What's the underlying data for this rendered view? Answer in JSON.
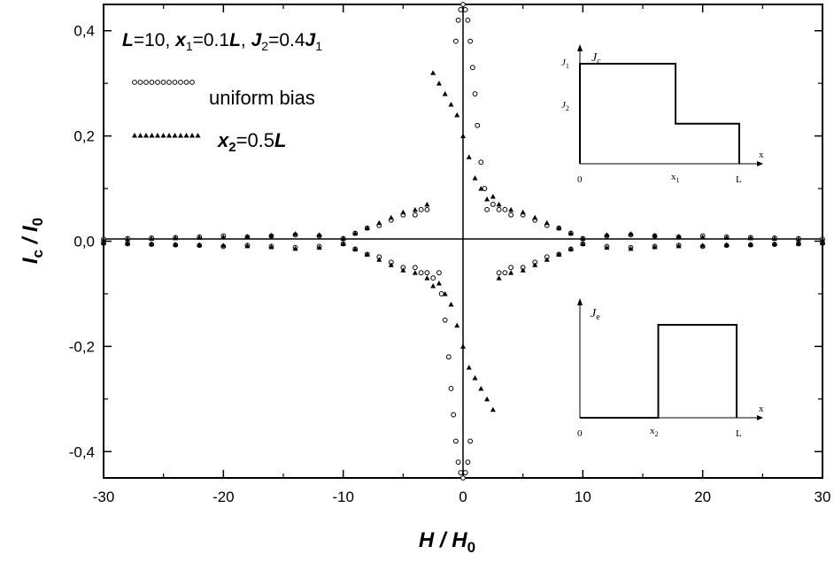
{
  "chart_data": {
    "type": "scatter",
    "xlabel": "H / H0",
    "ylabel": "Ic / I0",
    "xlim": [
      -30,
      30
    ],
    "ylim": [
      -0.45,
      0.45
    ],
    "xticks": [
      -30,
      -20,
      -10,
      0,
      10,
      20,
      30
    ],
    "yticks": [
      -0.4,
      -0.2,
      0.0,
      0.2,
      0.4
    ],
    "ytick_labels": [
      "-0,4",
      "-0,2",
      "0,0",
      "0,2",
      "0,4"
    ],
    "xtick_labels": [
      "-30",
      "-20",
      "-10",
      "0",
      "10",
      "20",
      "30"
    ],
    "annotation": {
      "L_sym": "L",
      "L_val": "=10, ",
      "x1_sym": "x",
      "x1_sub": "1",
      "x1_val": "=0.1",
      "x1_L": "L",
      "sep": ", ",
      "J2_sym": "J",
      "J2_sub": "2",
      "J2_val": "=0.4",
      "J1_sym": "J",
      "J1_sub": "1"
    },
    "legend": {
      "placement": "top-left",
      "entries": [
        {
          "marker": "circle",
          "label": "uniform bias"
        },
        {
          "marker": "triangle",
          "label_sym": "x",
          "label_sub": "2",
          "label_val": "=0.5",
          "label_L": "L"
        }
      ]
    },
    "grid": false,
    "series": [
      {
        "marker": "circle",
        "x": [
          -0.6,
          -0.4,
          -0.2,
          0,
          0.2,
          0.4,
          0.6,
          0.8,
          1.0,
          1.2,
          1.5,
          1.8,
          2.0,
          2.5,
          3,
          3.5,
          4,
          5,
          6,
          7,
          8,
          9,
          10,
          12,
          14,
          16,
          18,
          20,
          22,
          24,
          26,
          28,
          30
        ],
        "y": [
          0.38,
          0.42,
          0.44,
          0.45,
          0.44,
          0.42,
          0.38,
          0.33,
          0.28,
          0.22,
          0.15,
          0.1,
          0.06,
          0.07,
          0.06,
          0.06,
          0.05,
          0.05,
          0.04,
          0.03,
          0.025,
          0.015,
          0.005,
          0.01,
          0.012,
          0.01,
          0.008,
          0.01,
          0.008,
          0.007,
          0.006,
          0.005,
          0.004
        ]
      },
      {
        "marker": "triangle",
        "x": [
          -2.5,
          -2,
          -1.5,
          -1,
          -0.5,
          0,
          0.5,
          1,
          1.5,
          2,
          2.5,
          3,
          4,
          5,
          6,
          7,
          8,
          9,
          10,
          12,
          14,
          16,
          18,
          20,
          22,
          24,
          26,
          28,
          30
        ],
        "y": [
          0.32,
          0.3,
          0.28,
          0.26,
          0.24,
          0.2,
          0.16,
          0.12,
          0.1,
          0.08,
          0.085,
          0.07,
          0.06,
          0.055,
          0.045,
          0.035,
          0.025,
          0.015,
          0.005,
          0.012,
          0.014,
          0.011,
          0.009,
          0.008,
          0.007,
          0.006,
          0.005,
          0.004,
          0.003
        ]
      }
    ],
    "insets": [
      {
        "ylabel_sym": "J",
        "ylabel_sub": "c",
        "xlabel": "x",
        "x_ticks": [
          "0",
          "x",
          "L"
        ],
        "x_tick_sub": [
          "",
          "1",
          ""
        ],
        "y_ticks_sym": [
          "J",
          "J"
        ],
        "y_ticks_sub": [
          "1",
          "2"
        ],
        "profile": [
          [
            0,
            1
          ],
          [
            0.6,
            1
          ],
          [
            0.6,
            0.4
          ],
          [
            1,
            0.4
          ]
        ]
      },
      {
        "ylabel_sym": "J",
        "ylabel_sub": "e",
        "xlabel": "x",
        "x_ticks": [
          "0",
          "x",
          "L"
        ],
        "x_tick_sub": [
          "",
          "2",
          ""
        ],
        "profile": [
          [
            0,
            0
          ],
          [
            0.5,
            0
          ],
          [
            0.5,
            1
          ],
          [
            1,
            1
          ]
        ]
      }
    ]
  }
}
